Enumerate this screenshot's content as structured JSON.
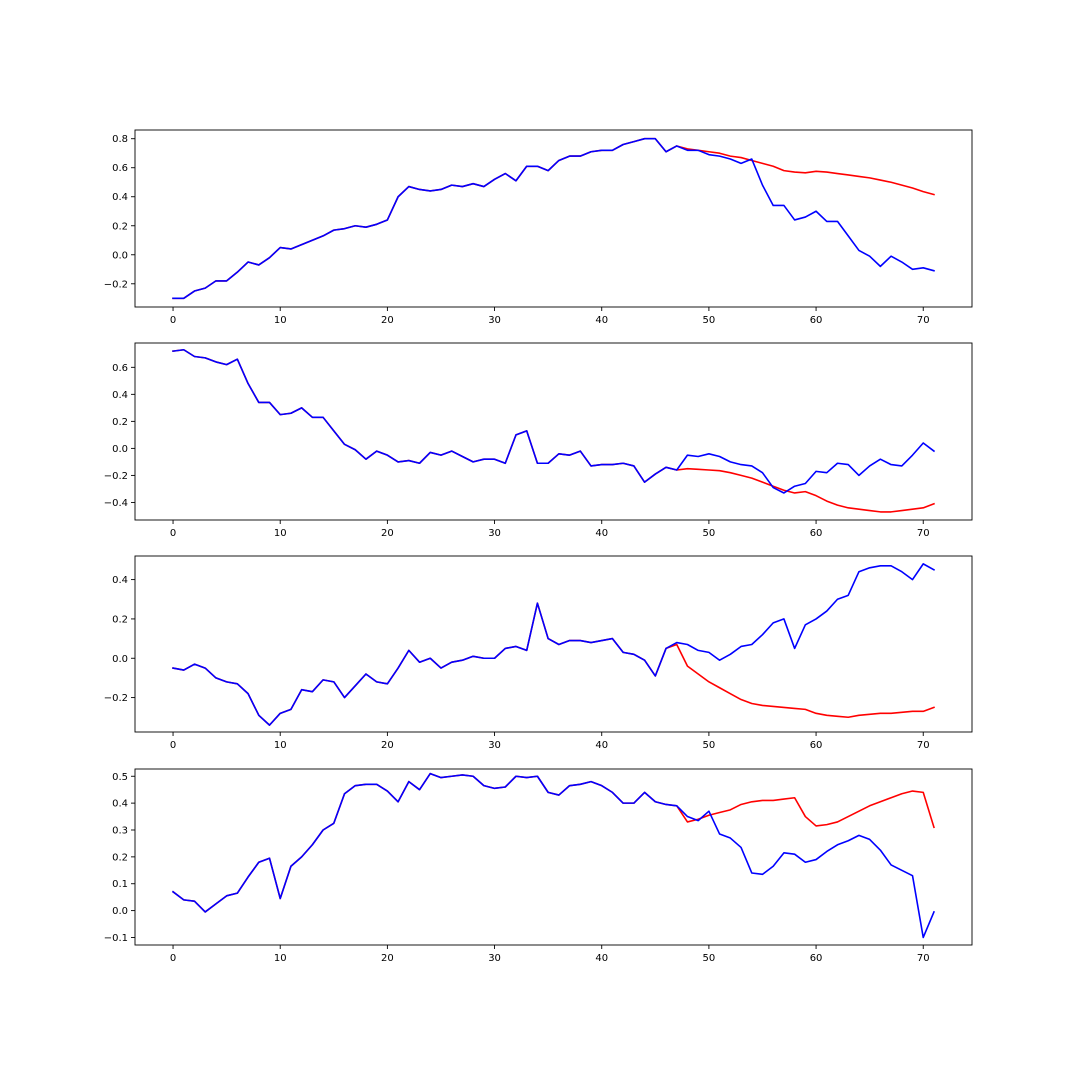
{
  "colors": {
    "predicted": "#ff0000",
    "actual": "#0000ff",
    "axis": "#000000",
    "background": "#ffffff"
  },
  "chart_data": [
    {
      "type": "line",
      "grid": false,
      "legend": "none",
      "xlim": [
        -3.55,
        74.55
      ],
      "ylim": [
        -0.36,
        0.86
      ],
      "xticks": [
        0,
        10,
        20,
        30,
        40,
        50,
        60,
        70
      ],
      "xtick_labels": [
        "0",
        "10",
        "20",
        "30",
        "40",
        "50",
        "60",
        "70"
      ],
      "yticks": [
        -0.2,
        0.0,
        0.2,
        0.4,
        0.6,
        0.8
      ],
      "ytick_labels": [
        "−0.2",
        "0.0",
        "0.2",
        "0.4",
        "0.6",
        "0.8"
      ],
      "x": [
        0,
        1,
        2,
        3,
        4,
        5,
        6,
        7,
        8,
        9,
        10,
        11,
        12,
        13,
        14,
        15,
        16,
        17,
        18,
        19,
        20,
        21,
        22,
        23,
        24,
        25,
        26,
        27,
        28,
        29,
        30,
        31,
        32,
        33,
        34,
        35,
        36,
        37,
        38,
        39,
        40,
        41,
        42,
        43,
        44,
        45,
        46,
        47,
        48,
        49,
        50,
        51,
        52,
        53,
        54,
        55,
        56,
        57,
        58,
        59,
        60,
        61,
        62,
        63,
        64,
        65,
        66,
        67,
        68,
        69,
        70,
        71
      ],
      "series": [
        {
          "color": "#ff0000",
          "values": [
            -0.3,
            -0.3,
            -0.25,
            -0.23,
            -0.18,
            -0.18,
            -0.12,
            -0.05,
            -0.07,
            -0.02,
            0.05,
            0.04,
            0.07,
            0.1,
            0.13,
            0.17,
            0.18,
            0.2,
            0.19,
            0.21,
            0.24,
            0.4,
            0.47,
            0.45,
            0.44,
            0.45,
            0.48,
            0.47,
            0.49,
            0.47,
            0.52,
            0.56,
            0.51,
            0.61,
            0.61,
            0.58,
            0.65,
            0.68,
            0.68,
            0.71,
            0.72,
            0.72,
            0.76,
            0.78,
            0.8,
            0.8,
            0.71,
            0.75,
            0.73,
            0.72,
            0.71,
            0.7,
            0.68,
            0.67,
            0.65,
            0.63,
            0.61,
            0.58,
            0.57,
            0.565,
            0.575,
            0.57,
            0.56,
            0.55,
            0.54,
            0.53,
            0.515,
            0.5,
            0.48,
            0.46,
            0.435,
            0.415
          ]
        },
        {
          "color": "#0000ff",
          "values": [
            -0.3,
            -0.3,
            -0.25,
            -0.23,
            -0.18,
            -0.18,
            -0.12,
            -0.05,
            -0.07,
            -0.02,
            0.05,
            0.04,
            0.07,
            0.1,
            0.13,
            0.17,
            0.18,
            0.2,
            0.19,
            0.21,
            0.24,
            0.4,
            0.47,
            0.45,
            0.44,
            0.45,
            0.48,
            0.47,
            0.49,
            0.47,
            0.52,
            0.56,
            0.51,
            0.61,
            0.61,
            0.58,
            0.65,
            0.68,
            0.68,
            0.71,
            0.72,
            0.72,
            0.76,
            0.78,
            0.8,
            0.8,
            0.71,
            0.75,
            0.72,
            0.72,
            0.69,
            0.68,
            0.66,
            0.63,
            0.66,
            0.48,
            0.34,
            0.34,
            0.24,
            0.26,
            0.3,
            0.23,
            0.23,
            0.13,
            0.03,
            -0.01,
            -0.08,
            -0.01,
            -0.05,
            -0.1,
            -0.09,
            -0.11
          ]
        }
      ]
    },
    {
      "type": "line",
      "grid": false,
      "legend": "none",
      "xlim": [
        -3.55,
        74.55
      ],
      "ylim": [
        -0.53,
        0.78
      ],
      "xticks": [
        0,
        10,
        20,
        30,
        40,
        50,
        60,
        70
      ],
      "xtick_labels": [
        "0",
        "10",
        "20",
        "30",
        "40",
        "50",
        "60",
        "70"
      ],
      "yticks": [
        -0.4,
        -0.2,
        0.0,
        0.2,
        0.4,
        0.6
      ],
      "ytick_labels": [
        "−0.4",
        "−0.2",
        "0.0",
        "0.2",
        "0.4",
        "0.6"
      ],
      "x": [
        0,
        1,
        2,
        3,
        4,
        5,
        6,
        7,
        8,
        9,
        10,
        11,
        12,
        13,
        14,
        15,
        16,
        17,
        18,
        19,
        20,
        21,
        22,
        23,
        24,
        25,
        26,
        27,
        28,
        29,
        30,
        31,
        32,
        33,
        34,
        35,
        36,
        37,
        38,
        39,
        40,
        41,
        42,
        43,
        44,
        45,
        46,
        47,
        48,
        49,
        50,
        51,
        52,
        53,
        54,
        55,
        56,
        57,
        58,
        59,
        60,
        61,
        62,
        63,
        64,
        65,
        66,
        67,
        68,
        69,
        70,
        71
      ],
      "series": [
        {
          "color": "#ff0000",
          "values": [
            0.72,
            0.73,
            0.68,
            0.67,
            0.64,
            0.62,
            0.66,
            0.48,
            0.34,
            0.34,
            0.25,
            0.26,
            0.3,
            0.23,
            0.23,
            0.13,
            0.03,
            -0.01,
            -0.08,
            -0.02,
            -0.05,
            -0.1,
            -0.09,
            -0.11,
            -0.03,
            -0.05,
            -0.02,
            -0.06,
            -0.1,
            -0.08,
            -0.08,
            -0.11,
            0.1,
            0.13,
            -0.11,
            -0.11,
            -0.04,
            -0.05,
            -0.02,
            -0.13,
            -0.12,
            -0.12,
            -0.11,
            -0.13,
            -0.25,
            -0.19,
            -0.14,
            -0.16,
            -0.15,
            -0.155,
            -0.16,
            -0.165,
            -0.18,
            -0.2,
            -0.22,
            -0.25,
            -0.28,
            -0.31,
            -0.33,
            -0.32,
            -0.35,
            -0.39,
            -0.42,
            -0.44,
            -0.45,
            -0.46,
            -0.47,
            -0.47,
            -0.46,
            -0.45,
            -0.44,
            -0.41
          ]
        },
        {
          "color": "#0000ff",
          "values": [
            0.72,
            0.73,
            0.68,
            0.67,
            0.64,
            0.62,
            0.66,
            0.48,
            0.34,
            0.34,
            0.25,
            0.26,
            0.3,
            0.23,
            0.23,
            0.13,
            0.03,
            -0.01,
            -0.08,
            -0.02,
            -0.05,
            -0.1,
            -0.09,
            -0.11,
            -0.03,
            -0.05,
            -0.02,
            -0.06,
            -0.1,
            -0.08,
            -0.08,
            -0.11,
            0.1,
            0.13,
            -0.11,
            -0.11,
            -0.04,
            -0.05,
            -0.02,
            -0.13,
            -0.12,
            -0.12,
            -0.11,
            -0.13,
            -0.25,
            -0.19,
            -0.14,
            -0.16,
            -0.05,
            -0.06,
            -0.04,
            -0.06,
            -0.1,
            -0.12,
            -0.13,
            -0.18,
            -0.29,
            -0.33,
            -0.28,
            -0.26,
            -0.17,
            -0.18,
            -0.11,
            -0.12,
            -0.2,
            -0.13,
            -0.08,
            -0.12,
            -0.13,
            -0.05,
            0.04,
            -0.02
          ]
        }
      ]
    },
    {
      "type": "line",
      "grid": false,
      "legend": "none",
      "xlim": [
        -3.55,
        74.55
      ],
      "ylim": [
        -0.375,
        0.52
      ],
      "xticks": [
        0,
        10,
        20,
        30,
        40,
        50,
        60,
        70
      ],
      "xtick_labels": [
        "0",
        "10",
        "20",
        "30",
        "40",
        "50",
        "60",
        "70"
      ],
      "yticks": [
        -0.2,
        0.0,
        0.2,
        0.4
      ],
      "ytick_labels": [
        "−0.2",
        "0.0",
        "0.2",
        "0.4"
      ],
      "x": [
        0,
        1,
        2,
        3,
        4,
        5,
        6,
        7,
        8,
        9,
        10,
        11,
        12,
        13,
        14,
        15,
        16,
        17,
        18,
        19,
        20,
        21,
        22,
        23,
        24,
        25,
        26,
        27,
        28,
        29,
        30,
        31,
        32,
        33,
        34,
        35,
        36,
        37,
        38,
        39,
        40,
        41,
        42,
        43,
        44,
        45,
        46,
        47,
        48,
        49,
        50,
        51,
        52,
        53,
        54,
        55,
        56,
        57,
        58,
        59,
        60,
        61,
        62,
        63,
        64,
        65,
        66,
        67,
        68,
        69,
        70,
        71
      ],
      "series": [
        {
          "color": "#ff0000",
          "values": [
            -0.05,
            -0.06,
            -0.03,
            -0.05,
            -0.1,
            -0.12,
            -0.13,
            -0.18,
            -0.29,
            -0.34,
            -0.28,
            -0.26,
            -0.16,
            -0.17,
            -0.11,
            -0.12,
            -0.2,
            -0.14,
            -0.08,
            -0.12,
            -0.13,
            -0.05,
            0.04,
            -0.02,
            0.0,
            -0.05,
            -0.02,
            -0.01,
            0.01,
            0.0,
            0.0,
            0.05,
            0.06,
            0.04,
            0.28,
            0.1,
            0.07,
            0.09,
            0.09,
            0.08,
            0.09,
            0.1,
            0.03,
            0.02,
            -0.01,
            -0.09,
            0.05,
            0.07,
            -0.04,
            -0.08,
            -0.12,
            -0.15,
            -0.18,
            -0.21,
            -0.23,
            -0.24,
            -0.245,
            -0.25,
            -0.255,
            -0.26,
            -0.28,
            -0.29,
            -0.295,
            -0.3,
            -0.29,
            -0.285,
            -0.28,
            -0.28,
            -0.275,
            -0.27,
            -0.27,
            -0.25
          ]
        },
        {
          "color": "#0000ff",
          "values": [
            -0.05,
            -0.06,
            -0.03,
            -0.05,
            -0.1,
            -0.12,
            -0.13,
            -0.18,
            -0.29,
            -0.34,
            -0.28,
            -0.26,
            -0.16,
            -0.17,
            -0.11,
            -0.12,
            -0.2,
            -0.14,
            -0.08,
            -0.12,
            -0.13,
            -0.05,
            0.04,
            -0.02,
            0.0,
            -0.05,
            -0.02,
            -0.01,
            0.01,
            0.0,
            0.0,
            0.05,
            0.06,
            0.04,
            0.28,
            0.1,
            0.07,
            0.09,
            0.09,
            0.08,
            0.09,
            0.1,
            0.03,
            0.02,
            -0.01,
            -0.09,
            0.05,
            0.08,
            0.07,
            0.04,
            0.03,
            -0.01,
            0.02,
            0.06,
            0.07,
            0.12,
            0.18,
            0.2,
            0.05,
            0.17,
            0.2,
            0.24,
            0.3,
            0.32,
            0.44,
            0.46,
            0.47,
            0.47,
            0.44,
            0.4,
            0.48,
            0.45
          ]
        }
      ]
    },
    {
      "type": "line",
      "grid": false,
      "legend": "none",
      "xlim": [
        -3.55,
        74.55
      ],
      "ylim": [
        -0.128,
        0.527
      ],
      "xticks": [
        0,
        10,
        20,
        30,
        40,
        50,
        60,
        70
      ],
      "xtick_labels": [
        "0",
        "10",
        "20",
        "30",
        "40",
        "50",
        "60",
        "70"
      ],
      "yticks": [
        -0.1,
        0.0,
        0.1,
        0.2,
        0.3,
        0.4,
        0.5
      ],
      "ytick_labels": [
        "−0.1",
        "0.0",
        "0.1",
        "0.2",
        "0.3",
        "0.4",
        "0.5"
      ],
      "x": [
        0,
        1,
        2,
        3,
        4,
        5,
        6,
        7,
        8,
        9,
        10,
        11,
        12,
        13,
        14,
        15,
        16,
        17,
        18,
        19,
        20,
        21,
        22,
        23,
        24,
        25,
        26,
        27,
        28,
        29,
        30,
        31,
        32,
        33,
        34,
        35,
        36,
        37,
        38,
        39,
        40,
        41,
        42,
        43,
        44,
        45,
        46,
        47,
        48,
        49,
        50,
        51,
        52,
        53,
        54,
        55,
        56,
        57,
        58,
        59,
        60,
        61,
        62,
        63,
        64,
        65,
        66,
        67,
        68,
        69,
        70,
        71
      ],
      "series": [
        {
          "color": "#ff0000",
          "values": [
            0.07,
            0.04,
            0.035,
            -0.005,
            0.025,
            0.055,
            0.065,
            0.125,
            0.18,
            0.195,
            0.045,
            0.165,
            0.2,
            0.245,
            0.3,
            0.325,
            0.435,
            0.465,
            0.47,
            0.47,
            0.445,
            0.405,
            0.48,
            0.45,
            0.51,
            0.495,
            0.5,
            0.505,
            0.5,
            0.465,
            0.455,
            0.46,
            0.5,
            0.495,
            0.5,
            0.44,
            0.43,
            0.465,
            0.47,
            0.48,
            0.465,
            0.44,
            0.4,
            0.4,
            0.44,
            0.405,
            0.395,
            0.39,
            0.33,
            0.34,
            0.355,
            0.365,
            0.375,
            0.395,
            0.405,
            0.41,
            0.41,
            0.415,
            0.42,
            0.35,
            0.315,
            0.32,
            0.33,
            0.35,
            0.37,
            0.39,
            0.405,
            0.42,
            0.435,
            0.445,
            0.44,
            0.31
          ]
        },
        {
          "color": "#0000ff",
          "values": [
            0.07,
            0.04,
            0.035,
            -0.005,
            0.025,
            0.055,
            0.065,
            0.125,
            0.18,
            0.195,
            0.045,
            0.165,
            0.2,
            0.245,
            0.3,
            0.325,
            0.435,
            0.465,
            0.47,
            0.47,
            0.445,
            0.405,
            0.48,
            0.45,
            0.51,
            0.495,
            0.5,
            0.505,
            0.5,
            0.465,
            0.455,
            0.46,
            0.5,
            0.495,
            0.5,
            0.44,
            0.43,
            0.465,
            0.47,
            0.48,
            0.465,
            0.44,
            0.4,
            0.4,
            0.44,
            0.405,
            0.395,
            0.39,
            0.35,
            0.335,
            0.37,
            0.285,
            0.27,
            0.235,
            0.14,
            0.135,
            0.165,
            0.215,
            0.21,
            0.18,
            0.19,
            0.22,
            0.245,
            0.26,
            0.28,
            0.265,
            0.225,
            0.17,
            0.15,
            0.13,
            -0.1,
            -0.005
          ]
        }
      ]
    }
  ]
}
